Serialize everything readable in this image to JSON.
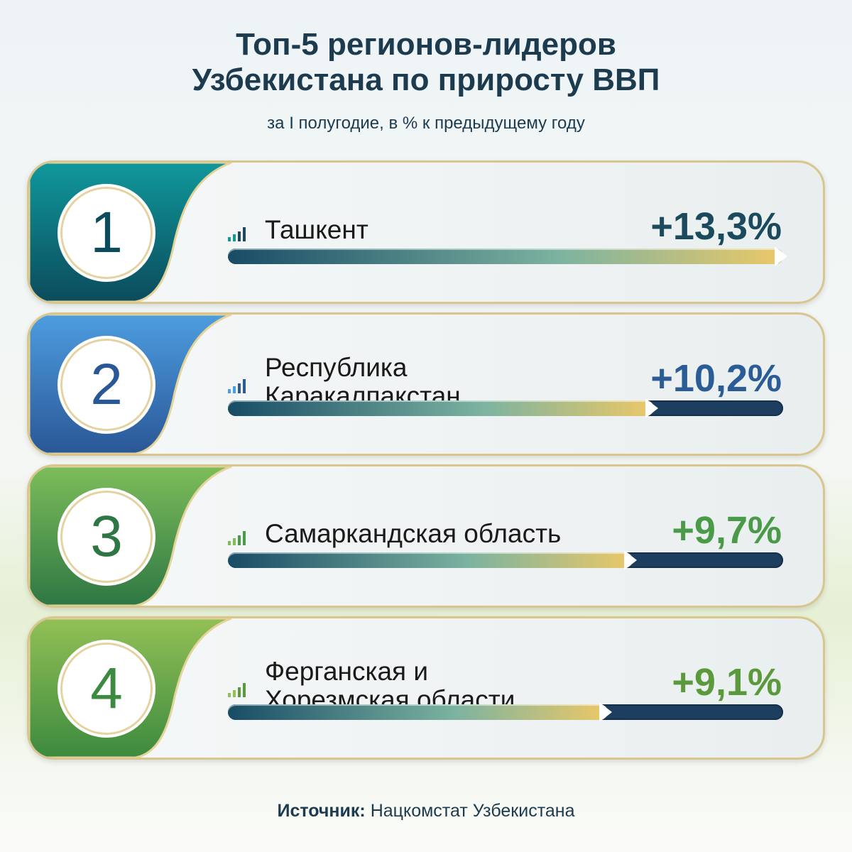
{
  "chart_data": {
    "type": "ranked-bar",
    "title": "Топ-5 регионов-лидеров\nУзбекистана по приросту ВВП",
    "subtitle": "за I полугодие, в % к предыдущему году",
    "ranks": [
      1,
      2,
      3,
      4
    ],
    "categories": [
      "Ташкент",
      "Республика\nКаракалпакстан",
      "Самаркандская область",
      "Ферганская и\nХорезмская области"
    ],
    "values": [
      13.3,
      10.2,
      9.7,
      9.1
    ],
    "value_labels": [
      "+13,3%",
      "+10,2%",
      "+9,7%",
      "+9,1%"
    ],
    "colors": [
      [
        "#10989b",
        "#0b4b5c"
      ],
      [
        "#4d9de0",
        "#2a5796"
      ],
      [
        "#7dbd5a",
        "#2e7744"
      ],
      [
        "#93c056",
        "#3c8a3f"
      ]
    ],
    "value_colors": [
      "#1b4a5c",
      "#2b5c96",
      "#4b9a4a",
      "#5b9a3c"
    ],
    "source": {
      "label": "Источник:",
      "text": "Нацкомстат Узбекистана"
    }
  }
}
